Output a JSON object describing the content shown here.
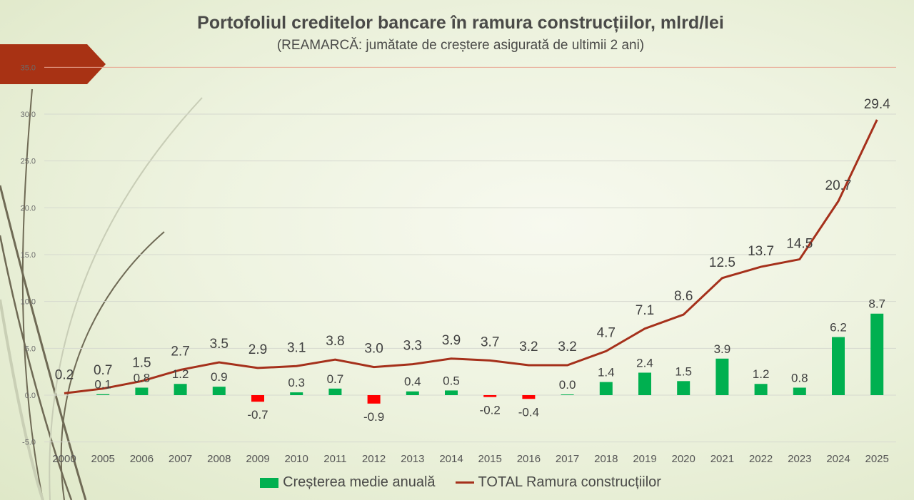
{
  "chart_data": {
    "type": "bar+line",
    "title": "Portofoliul creditelor bancare în ramura construcțiilor, mlrd/lei",
    "subtitle": "(REAMARCĂ: jumătate de creștere asigurată de ultimii 2 ani)",
    "categories": [
      "2000",
      "2005",
      "2006",
      "2007",
      "2008",
      "2009",
      "2010",
      "2011",
      "2012",
      "2013",
      "2014",
      "2015",
      "2016",
      "2017",
      "2018",
      "2019",
      "2020",
      "2021",
      "2022",
      "2023",
      "2024",
      "2025"
    ],
    "series": [
      {
        "name": "Creșterea medie anuală",
        "type": "bar",
        "color": "#00b050",
        "negative_color": "#ff0000",
        "values": [
          null,
          0.1,
          0.8,
          1.2,
          0.9,
          -0.7,
          0.3,
          0.7,
          -0.9,
          0.4,
          0.5,
          -0.2,
          -0.4,
          0.0,
          1.4,
          2.4,
          1.5,
          3.9,
          1.2,
          0.8,
          6.2,
          8.7
        ]
      },
      {
        "name": "TOTAL Ramura construcțiilor",
        "type": "line",
        "color": "#a5301b",
        "values": [
          0.2,
          0.7,
          1.5,
          2.7,
          3.5,
          2.9,
          3.1,
          3.8,
          3.0,
          3.3,
          3.9,
          3.7,
          3.2,
          3.2,
          4.7,
          7.1,
          8.6,
          12.5,
          13.7,
          14.5,
          20.7,
          29.4
        ]
      }
    ],
    "yticks": [
      "-5.0",
      "0.0",
      "5.0",
      "10.0",
      "15.0",
      "20.0",
      "25.0",
      "30.0",
      "35.0"
    ],
    "ylim": [
      -5,
      35
    ],
    "grid": true,
    "legend": "bottom"
  }
}
